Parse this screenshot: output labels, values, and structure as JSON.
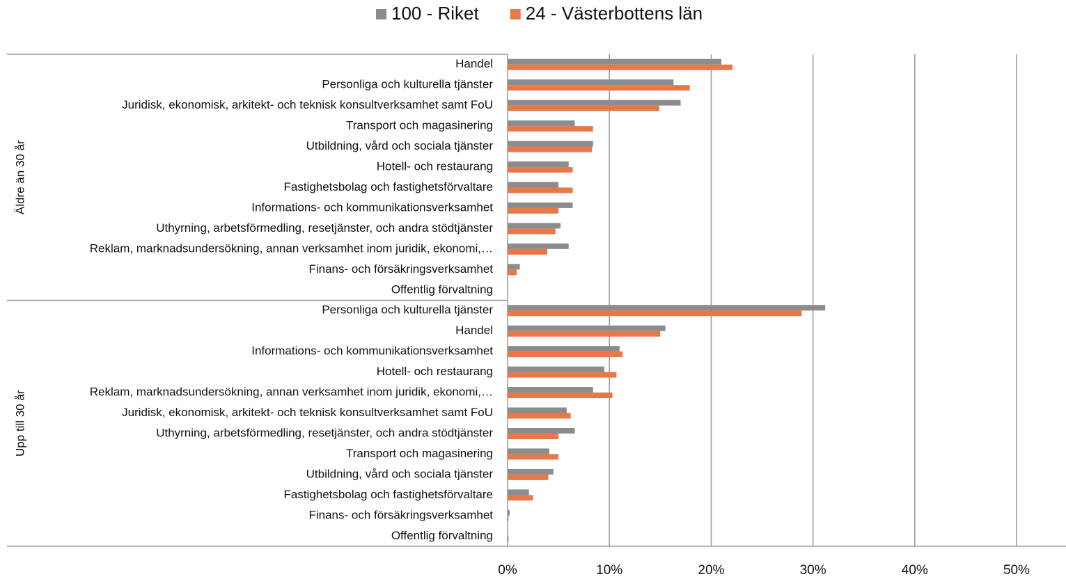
{
  "chart_data": {
    "type": "bar",
    "orientation": "horizontal",
    "group_labels": [
      "Äldre än 30 år",
      "Upp till 30 år"
    ],
    "categories": [
      [
        "Handel",
        "Personliga och kulturella tjänster",
        "Juridisk, ekonomisk, arkitekt- och teknisk konsultverksamhet samt FoU",
        "Transport och magasinering",
        "Utbildning, vård och sociala tjänster",
        "Hotell- och restaurang",
        "Fastighetsbolag och fastighetsförvaltare",
        "Informations- och kommunikationsverksamhet",
        "Uthyrning, arbetsförmedling, resetjänster, och andra stödtjänster",
        "Reklam, marknadsundersökning, annan verksamhet inom juridik, ekonomi,…",
        "Finans- och försäkringsverksamhet",
        "Offentlig förvaltning"
      ],
      [
        "Personliga och kulturella tjänster",
        "Handel",
        "Informations- och kommunikationsverksamhet",
        "Hotell- och restaurang",
        "Reklam, marknadsundersökning, annan verksamhet inom juridik, ekonomi,…",
        "Juridisk, ekonomisk, arkitekt- och teknisk konsultverksamhet samt FoU",
        "Uthyrning, arbetsförmedling, resetjänster, och andra stödtjänster",
        "Transport och magasinering",
        "Utbildning, vård och sociala tjänster",
        "Fastighetsbolag och fastighetsförvaltare",
        "Finans- och försäkringsverksamhet",
        "Offentlig förvaltning"
      ]
    ],
    "series": [
      {
        "name": "100 - Riket",
        "color": "#8c8c8c",
        "values": [
          [
            21.0,
            16.3,
            17.0,
            6.6,
            8.4,
            6.0,
            5.0,
            6.4,
            5.2,
            6.0,
            1.2,
            0
          ],
          [
            31.2,
            15.5,
            11.0,
            9.5,
            8.4,
            5.8,
            6.6,
            4.1,
            4.5,
            2.1,
            0.2,
            0
          ]
        ]
      },
      {
        "name": "24 - Västerbottens län",
        "color": "#e8784a",
        "values": [
          [
            22.1,
            17.9,
            14.9,
            8.4,
            8.3,
            6.4,
            6.4,
            5.0,
            4.7,
            3.9,
            0.9,
            0
          ],
          [
            28.9,
            15.0,
            11.3,
            10.7,
            10.3,
            6.2,
            5.0,
            5.0,
            4.0,
            2.5,
            0.1,
            0.1
          ]
        ]
      }
    ],
    "xlim": [
      0,
      50
    ],
    "xticks": [
      {
        "value": 0,
        "label": "0%"
      },
      {
        "value": 10,
        "label": "10%"
      },
      {
        "value": 20,
        "label": "20%"
      },
      {
        "value": 30,
        "label": "30%"
      },
      {
        "value": 40,
        "label": "40%"
      },
      {
        "value": 50,
        "label": "50%"
      }
    ],
    "grid": true,
    "legend": "top"
  }
}
